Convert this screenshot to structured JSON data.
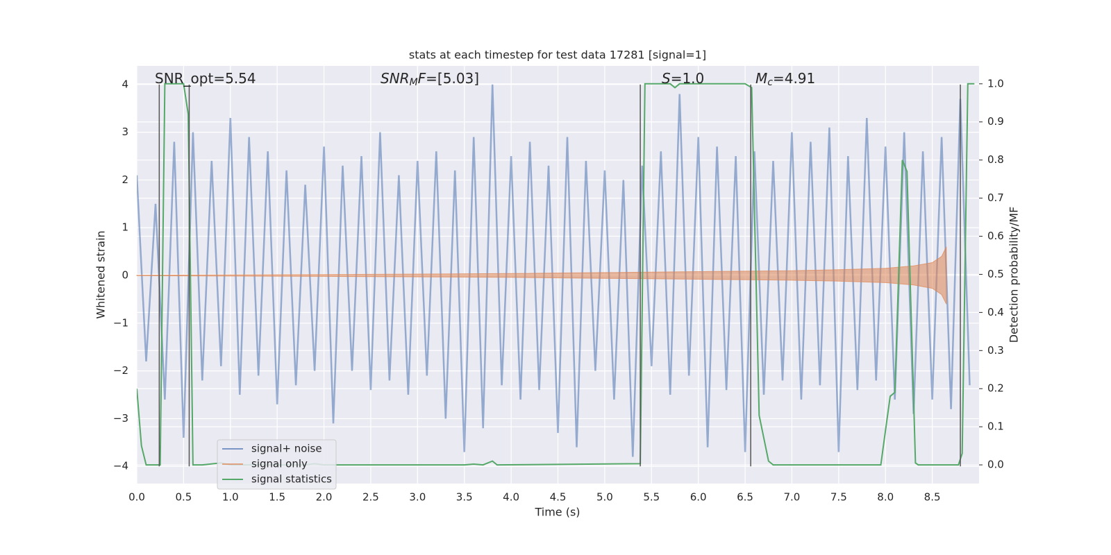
{
  "chart_data": {
    "type": "line",
    "title": "stats at each timestep for test data 17281 [signal=1]",
    "xlabel": "Time (s)",
    "ylabel": "Whitened strain",
    "y2label": "Detection probability/MF",
    "xlim": [
      0,
      9.0
    ],
    "ylim": [
      -4.36,
      4.39
    ],
    "y2lim": [
      -0.049,
      1.047
    ],
    "xticks": [
      {
        "value": 0,
        "label": "0.0"
      },
      0.5,
      {
        "value": 1,
        "label": "1.0"
      },
      1.5,
      {
        "value": 2,
        "label": "2.0"
      },
      2.5,
      {
        "value": 3,
        "label": "3.0"
      },
      3.5,
      {
        "value": 4,
        "label": "4.0"
      },
      4.5,
      {
        "value": 5,
        "label": "5.0"
      },
      5.5,
      {
        "value": 6,
        "label": "6.0"
      },
      6.5,
      {
        "value": 7,
        "label": "7.0"
      },
      7.5,
      {
        "value": 8,
        "label": "8.0"
      },
      8.5
    ],
    "yticks": [
      {
        "value": -4,
        "label": "−4"
      },
      {
        "value": -3,
        "label": "−3"
      },
      {
        "value": -2,
        "label": "−2"
      },
      {
        "value": -1,
        "label": "−1"
      },
      0,
      1,
      2,
      3,
      4
    ],
    "y2ticks": [
      {
        "value": 0,
        "label": "0.0"
      },
      0.1,
      0.2,
      0.3,
      0.4,
      0.5,
      0.6,
      0.7,
      0.8,
      0.9,
      {
        "value": 1,
        "label": "1.0"
      }
    ],
    "grid": true,
    "legend": "lower left",
    "annotations": [
      {
        "segments": [
          {
            "text": "SNR_opt=5.54"
          }
        ]
      },
      {
        "segments": [
          {
            "text": "SNR",
            "italic": true
          },
          {
            "text": "M",
            "italic": true,
            "sub": true
          },
          {
            "text": "F",
            "italic": true
          },
          {
            "text": "=[5.03]"
          }
        ]
      },
      {
        "segments": [
          {
            "text": "S",
            "italic": true
          },
          {
            "text": "=1.0"
          }
        ]
      },
      {
        "segments": [
          {
            "text": "M",
            "italic": true
          },
          {
            "text": "c",
            "italic": true,
            "sub": true
          },
          {
            "text": "=4.91"
          }
        ]
      }
    ],
    "vlines": [
      0.24,
      0.56,
      5.38,
      6.56,
      8.8
    ],
    "vline_range": [
      -4,
      4
    ],
    "series": [
      {
        "name": "signal+ noise",
        "color": "#4c72b0",
        "kind": "line",
        "x": [
          0.0,
          0.1,
          0.2,
          0.3,
          0.4,
          0.5,
          0.6,
          0.7,
          0.8,
          0.9,
          1.0,
          1.1,
          1.2,
          1.3,
          1.4,
          1.5,
          1.6,
          1.7,
          1.8,
          1.9,
          2.0,
          2.1,
          2.2,
          2.3,
          2.4,
          2.5,
          2.6,
          2.7,
          2.8,
          2.9,
          3.0,
          3.1,
          3.2,
          3.3,
          3.4,
          3.5,
          3.6,
          3.7,
          3.8,
          3.9,
          4.0,
          4.1,
          4.2,
          4.3,
          4.4,
          4.5,
          4.6,
          4.7,
          4.8,
          4.9,
          5.0,
          5.1,
          5.2,
          5.3,
          5.4,
          5.5,
          5.6,
          5.7,
          5.8,
          5.9,
          6.0,
          6.1,
          6.2,
          6.3,
          6.4,
          6.5,
          6.6,
          6.7,
          6.8,
          6.9,
          7.0,
          7.1,
          7.2,
          7.3,
          7.4,
          7.5,
          7.6,
          7.7,
          7.8,
          7.9,
          8.0,
          8.1,
          8.2,
          8.3,
          8.4,
          8.5,
          8.6,
          8.7,
          8.8,
          8.9
        ],
        "values": [
          2.1,
          -1.8,
          1.5,
          -2.6,
          2.8,
          -3.4,
          3.0,
          -2.2,
          2.4,
          -1.9,
          3.3,
          -2.5,
          2.9,
          -2.1,
          2.6,
          -2.7,
          2.2,
          -2.3,
          1.9,
          -2.0,
          2.7,
          -3.1,
          2.3,
          -2.0,
          2.5,
          -2.4,
          3.0,
          -2.2,
          2.1,
          -2.5,
          2.4,
          -2.1,
          2.6,
          -3.0,
          2.2,
          -3.7,
          2.9,
          -3.2,
          4.0,
          -2.3,
          2.5,
          -2.6,
          2.8,
          -2.4,
          2.3,
          -3.3,
          2.9,
          -3.6,
          2.4,
          -2.0,
          2.2,
          -2.6,
          2.0,
          -3.8,
          2.3,
          -1.9,
          2.6,
          -2.5,
          3.8,
          -2.1,
          2.9,
          -3.6,
          2.7,
          -2.4,
          2.5,
          -3.7,
          2.6,
          -2.5,
          2.4,
          -2.2,
          3.0,
          -2.6,
          2.8,
          -2.3,
          3.1,
          -3.7,
          2.5,
          -2.4,
          3.3,
          -2.2,
          2.7,
          -2.6,
          3.0,
          -2.9,
          2.6,
          -2.6,
          2.9,
          -2.8,
          3.7,
          -2.3
        ]
      },
      {
        "name": "signal only",
        "color": "#dd8452",
        "kind": "envelope",
        "x": [
          0,
          2,
          4,
          5,
          6,
          7,
          7.5,
          8,
          8.3,
          8.5,
          8.6,
          8.65
        ],
        "values": [
          0.005,
          0.02,
          0.04,
          0.06,
          0.08,
          0.1,
          0.12,
          0.15,
          0.2,
          0.27,
          0.4,
          0.6
        ]
      },
      {
        "name": "signal statistics",
        "color": "#55a868",
        "kind": "line",
        "axis": "y2",
        "x": [
          0,
          0.05,
          0.1,
          0.25,
          0.3,
          0.5,
          0.55,
          0.6,
          0.7,
          0.9,
          1.0,
          1.8,
          1.9,
          2.0,
          3.5,
          3.6,
          3.7,
          3.8,
          3.85,
          5.38,
          5.43,
          5.7,
          5.75,
          5.8,
          6.5,
          6.57,
          6.65,
          6.75,
          6.8,
          7.95,
          8.0,
          8.05,
          8.1,
          8.18,
          8.23,
          8.32,
          8.35,
          8.78,
          8.82,
          8.88,
          8.95
        ],
        "values": [
          0.2,
          0.05,
          0,
          0,
          1.0,
          1.0,
          0.92,
          0,
          0,
          0.005,
          0,
          0,
          0.003,
          0,
          0,
          0.002,
          0,
          0.01,
          0,
          0.003,
          1.0,
          1.0,
          0.99,
          1.0,
          1.0,
          0.99,
          0.13,
          0.01,
          0,
          0,
          0.09,
          0.18,
          0.19,
          0.8,
          0.77,
          0.005,
          0,
          0,
          0.03,
          1.0,
          1.0
        ]
      }
    ]
  }
}
